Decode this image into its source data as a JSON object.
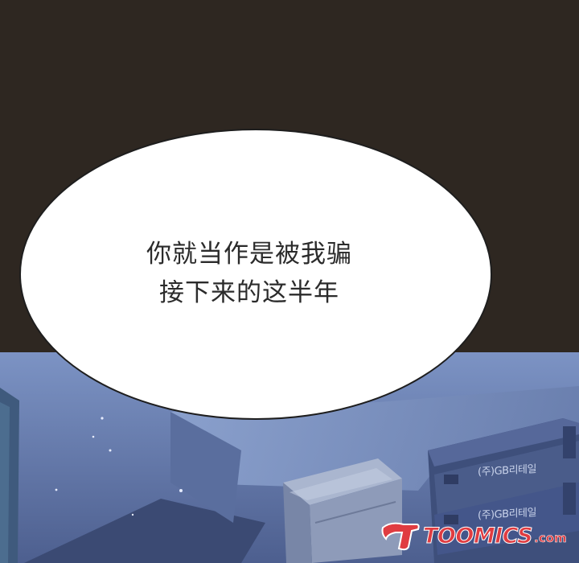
{
  "speech_bubble": {
    "line1": "你就当作是被我骗",
    "line2": "接下来的这半年"
  },
  "crates": {
    "label_top": "(주)GB리테일",
    "label_bottom": "(주)GB리테일"
  },
  "watermark": {
    "brand": "TOOMICS",
    "domain": ".com"
  },
  "colors": {
    "dark_background": "#2e2721",
    "scene_blue": "#6f86b7",
    "bubble_fill": "#ffffff",
    "watermark_red": "#e03c41"
  }
}
